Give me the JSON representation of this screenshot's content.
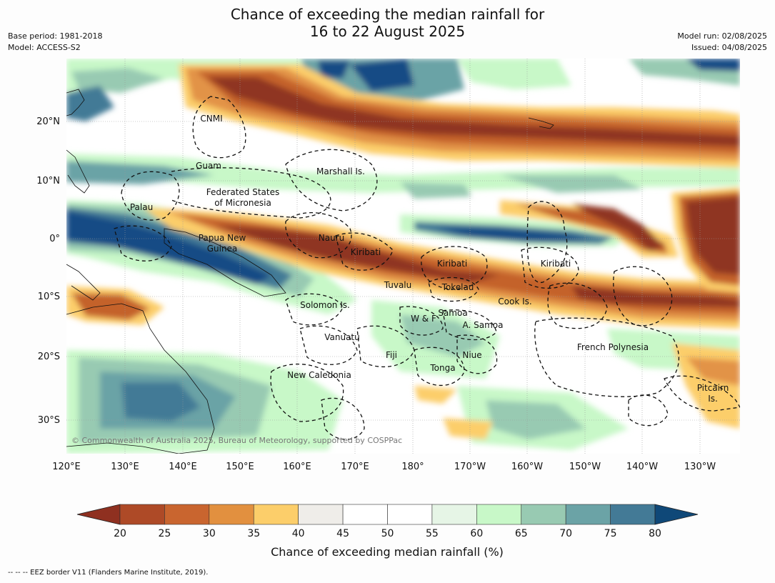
{
  "title_line1": "Chance of exceeding the median rainfall for",
  "title_line2": "16 to 22 August 2025",
  "base_period": "Base period: 1981-2018",
  "model": "Model: ACCESS-S2",
  "model_run": "Model run: 02/08/2025",
  "issued": "Issued: 04/08/2025",
  "copyright": "© Commonwealth of Australia 2025, Bureau of Meteorology, supported by COSPPac",
  "footnote": "-- -- -- EEZ border V11 (Flanders Marine Institute, 2019).",
  "lon_labels": [
    "120°E",
    "130°E",
    "140°E",
    "150°E",
    "160°E",
    "170°E",
    "180°",
    "170°W",
    "160°W",
    "150°W",
    "140°W",
    "130°W"
  ],
  "lat_labels": [
    "20°N",
    "10°N",
    "0°",
    "10°S",
    "20°S",
    "30°S"
  ],
  "regions": [
    {
      "name": "CNMI"
    },
    {
      "name": "Guam"
    },
    {
      "name": "Marshall Is."
    },
    {
      "name": "Federated States"
    },
    {
      "name": "of Micronesia"
    },
    {
      "name": "Palau"
    },
    {
      "name": "Papua New"
    },
    {
      "name": "Guinea"
    },
    {
      "name": "Nauru"
    },
    {
      "name": "Kiribati"
    },
    {
      "name": "Kiribati"
    },
    {
      "name": "Kiribati"
    },
    {
      "name": "Tuvalu"
    },
    {
      "name": "Tokelau"
    },
    {
      "name": "Cook Is."
    },
    {
      "name": "Solomon Is."
    },
    {
      "name": "W & F"
    },
    {
      "name": "Samoa"
    },
    {
      "name": "A. Samoa"
    },
    {
      "name": "Vanuatu"
    },
    {
      "name": "Fiji"
    },
    {
      "name": "Niue"
    },
    {
      "name": "Tonga"
    },
    {
      "name": "New Caledonia"
    },
    {
      "name": "French Polynesia"
    },
    {
      "name": "Pitcairn"
    },
    {
      "name": "Is."
    }
  ],
  "colorbar": {
    "title": "Chance of exceeding median rainfall (%)",
    "ticks": [
      "20",
      "25",
      "30",
      "35",
      "40",
      "45",
      "50",
      "55",
      "60",
      "65",
      "70",
      "75",
      "80"
    ],
    "colors": [
      "#ae4a27",
      "#c9652f",
      "#e2903f",
      "#fcce6a",
      "#efede9",
      "#ffffff",
      "#ffffff",
      "#e6f5e6",
      "#c8f8c8",
      "#98cab2",
      "#6ba3a6",
      "#437a96",
      "#134c85"
    ],
    "low_color": "#8f3020",
    "high_color": "#0f4878"
  },
  "map_colors": {
    "dry_strong": "#8f3520",
    "dry": "#c4622c",
    "dry_mid": "#e29346",
    "dry_light": "#fcce6a",
    "neutral": "#ebe9e3",
    "wet_light": "#c8f8c8",
    "wet_pale": "#e6f5e6",
    "wet_mid": "#98cab2",
    "wet": "#6ba3a6",
    "wet_dark": "#437a96",
    "wet_strong": "#134c85"
  }
}
